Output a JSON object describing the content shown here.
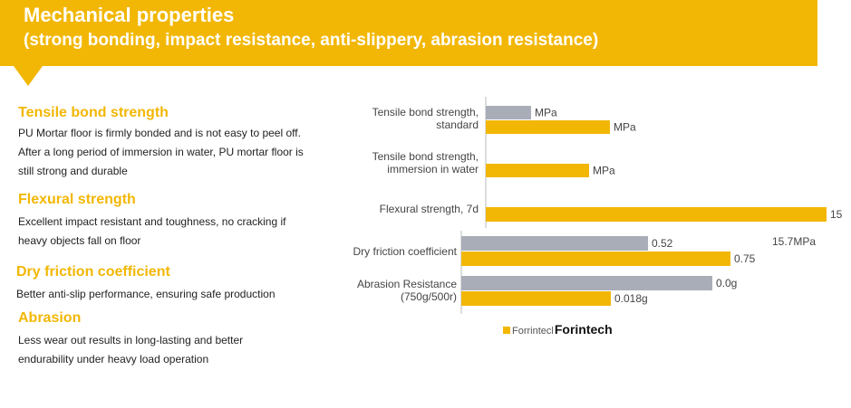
{
  "header": {
    "title": "Mechanical properties",
    "subtitle": "(strong bonding, impact resistance, anti-slippery, abrasion resistance)"
  },
  "sections": [
    {
      "heading": "Tensile bond strength",
      "text": "PU Mortar floor is firmly bonded and is not easy to peel off. After a long period of immersion in water, PU mortar floor is still strong and durable"
    },
    {
      "heading": "Flexural strength",
      "text": "Excellent  impact resistant and toughness, no cracking if heavy objects fall on floor"
    },
    {
      "heading": "Dry friction coefficient",
      "text": "Better anti-slip performance, ensuring safe production"
    },
    {
      "heading": "Abrasion",
      "text": "Less wear out results in long-lasting and better endurability under heavy load operation"
    }
  ],
  "chart_data": {
    "type": "bar",
    "orientation": "horizontal",
    "colors": {
      "grey": "#a9adb8",
      "yellow": "#f2b705"
    },
    "categories": [
      "Tensile bond strength, standard",
      "Tensile bond strength, immersion in water",
      "Flexural strength, 7d",
      "Dry friction coefficient",
      "Abrasion Resistance (750g/500r)"
    ],
    "bars": [
      {
        "category": 0,
        "color": "grey",
        "label": "MPa"
      },
      {
        "category": 0,
        "color": "yellow",
        "label": "MPa"
      },
      {
        "category": 1,
        "color": "yellow",
        "label": "MPa"
      },
      {
        "category": 2,
        "color": "yellow",
        "label": "15"
      },
      {
        "category": 3,
        "color": "grey",
        "label": "0.52",
        "value": 0.52
      },
      {
        "category": 3,
        "color": "yellow",
        "label": "0.75",
        "value": 0.75
      },
      {
        "category": 4,
        "color": "grey",
        "label": "0.0g"
      },
      {
        "category": 4,
        "color": "yellow",
        "label": "0.018g",
        "value": 0.018
      }
    ],
    "annotations": [
      "15.7MPa"
    ]
  },
  "brand": {
    "small": "Forrintecl",
    "bold": "Forintech"
  }
}
